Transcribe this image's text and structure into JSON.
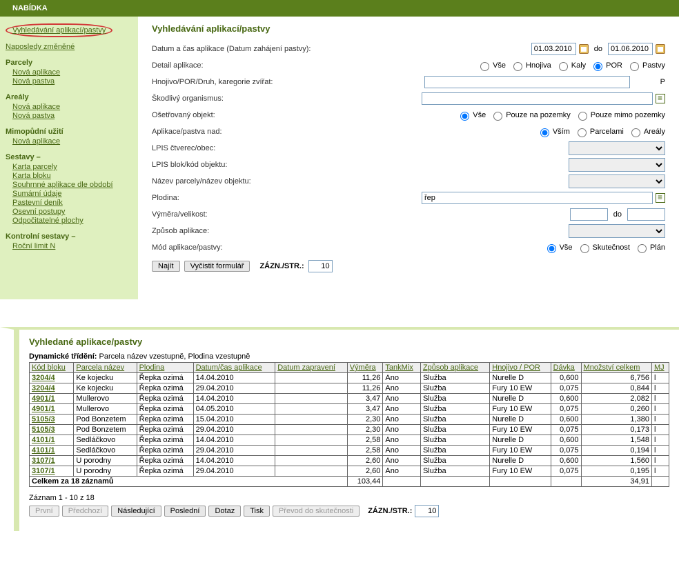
{
  "header": {
    "title": "NABÍDKA"
  },
  "sidebar": {
    "circled": "Vyhledávání aplikací/pastvy",
    "recent": "Naposledy změněné",
    "groups": [
      {
        "title": "Parcely",
        "items": [
          "Nová aplikace",
          "Nová pastva"
        ]
      },
      {
        "title": "Areály",
        "items": [
          "Nová aplikace",
          "Nová pastva"
        ]
      },
      {
        "title": "Mimopůdní užití",
        "items": [
          "Nová aplikace"
        ]
      },
      {
        "title": "Sestavy –",
        "items": [
          "Karta parcely",
          "Karta bloku",
          "Souhrnné aplikace dle období",
          "Sumární údaje",
          "Pastevní deník",
          "Osevní postupy",
          "Odpočitatelné plochy"
        ]
      },
      {
        "title": "Kontrolní sestavy –",
        "items": [
          "Roční limit N"
        ]
      }
    ]
  },
  "form": {
    "title": "Vyhledávání aplikací/pastvy",
    "rows": {
      "date_label": "Datum a čas aplikace (Datum zahájení pastvy):",
      "date_from": "01.03.2010",
      "date_to_label": "do",
      "date_to": "01.06.2010",
      "detail_label": "Detail aplikace:",
      "detail_options": [
        "Vše",
        "Hnojiva",
        "Kaly",
        "POR",
        "Pastvy"
      ],
      "detail_selected": "POR",
      "hnojivo_label": "Hnojivo/POR/Druh, karegorie zvířat:",
      "hnojivo_value": "",
      "hnojivo_suffix": "P",
      "skod_label": "Škodlivý organismus:",
      "skod_value": "",
      "obj_label": "Ošetřovaný objekt:",
      "obj_options": [
        "Vše",
        "Pouze na pozemky",
        "Pouze mimo pozemky"
      ],
      "obj_selected": "Vše",
      "nad_label": "Aplikace/pastva nad:",
      "nad_options": [
        "Vším",
        "Parcelami",
        "Areály"
      ],
      "nad_selected": "Vším",
      "lpis_ct_label": "LPIS čtverec/obec:",
      "lpis_blok_label": "LPIS blok/kód objektu:",
      "nazev_label": "Název parcely/název objektu:",
      "plodina_label": "Plodina:",
      "plodina_value": "řep",
      "vymera_label": "Výměra/velikost:",
      "vymera_do": "do",
      "zpusob_label": "Způsob aplikace:",
      "mod_label": "Mód aplikace/pastvy:",
      "mod_options": [
        "Vše",
        "Skutečnost",
        "Plán"
      ],
      "mod_selected": "Vše"
    },
    "buttons": {
      "find": "Najít",
      "clear": "Vyčistit formulář"
    },
    "per_page_label": "ZÁZN./STR.:",
    "per_page_value": "10"
  },
  "results": {
    "title": "Vyhledané aplikace/pastvy",
    "sort_prefix": "Dynamické třídění: ",
    "sort_text": "Parcela název vzestupně, Plodina vzestupně",
    "headers": [
      "Kód bloku",
      "Parcela název",
      "Plodina",
      "Datum/čas aplikace",
      "Datum zapravení",
      "Výměra",
      "TankMix",
      "Způsob aplikace",
      "Hnojivo / POR",
      "Dávka",
      "Množství celkem",
      "MJ"
    ],
    "rows": [
      [
        "3204/4",
        "Ke kojecku",
        "Řepka ozimá",
        "14.04.2010",
        "",
        "11,26",
        "Ano",
        "Služba",
        "Nurelle D",
        "0,600",
        "6,756",
        "l"
      ],
      [
        "3204/4",
        "Ke kojecku",
        "Řepka ozimá",
        "29.04.2010",
        "",
        "11,26",
        "Ano",
        "Služba",
        "Fury 10 EW",
        "0,075",
        "0,844",
        "l"
      ],
      [
        "4901/1",
        "Mullerovo",
        "Řepka ozimá",
        "14.04.2010",
        "",
        "3,47",
        "Ano",
        "Služba",
        "Nurelle D",
        "0,600",
        "2,082",
        "l"
      ],
      [
        "4901/1",
        "Mullerovo",
        "Řepka ozimá",
        "04.05.2010",
        "",
        "3,47",
        "Ano",
        "Služba",
        "Fury 10 EW",
        "0,075",
        "0,260",
        "l"
      ],
      [
        "5105/3",
        "Pod Bonzetem",
        "Řepka ozimá",
        "15.04.2010",
        "",
        "2,30",
        "Ano",
        "Služba",
        "Nurelle D",
        "0,600",
        "1,380",
        "l"
      ],
      [
        "5105/3",
        "Pod Bonzetem",
        "Řepka ozimá",
        "29.04.2010",
        "",
        "2,30",
        "Ano",
        "Služba",
        "Fury 10 EW",
        "0,075",
        "0,173",
        "l"
      ],
      [
        "4101/1",
        "Sedláčkovo",
        "Řepka ozimá",
        "14.04.2010",
        "",
        "2,58",
        "Ano",
        "Služba",
        "Nurelle D",
        "0,600",
        "1,548",
        "l"
      ],
      [
        "4101/1",
        "Sedláčkovo",
        "Řepka ozimá",
        "29.04.2010",
        "",
        "2,58",
        "Ano",
        "Služba",
        "Fury 10 EW",
        "0,075",
        "0,194",
        "l"
      ],
      [
        "3107/1",
        "U porodny",
        "Řepka ozimá",
        "14.04.2010",
        "",
        "2,60",
        "Ano",
        "Služba",
        "Nurelle D",
        "0,600",
        "1,560",
        "l"
      ],
      [
        "3107/1",
        "U porodny",
        "Řepka ozimá",
        "29.04.2010",
        "",
        "2,60",
        "Ano",
        "Služba",
        "Fury 10 EW",
        "0,075",
        "0,195",
        "l"
      ]
    ],
    "total_label": "Celkem za 18 záznamů",
    "total_vymera": "103,44",
    "total_mnozstvi": "34,91",
    "pager_text": "Záznam 1 - 10 z 18",
    "pager_buttons": {
      "first": "První",
      "prev": "Předchozí",
      "next": "Následující",
      "last": "Poslední",
      "query": "Dotaz",
      "print": "Tisk",
      "convert": "Převod do skutečnosti"
    },
    "per_page_label": "ZÁZN./STR.:",
    "per_page_value": "10"
  },
  "layout": {
    "num_cols": [
      5,
      9,
      10
    ],
    "date_input_width": 65,
    "long_input_width": 335,
    "p_input_width": 298,
    "select_width": 140
  }
}
